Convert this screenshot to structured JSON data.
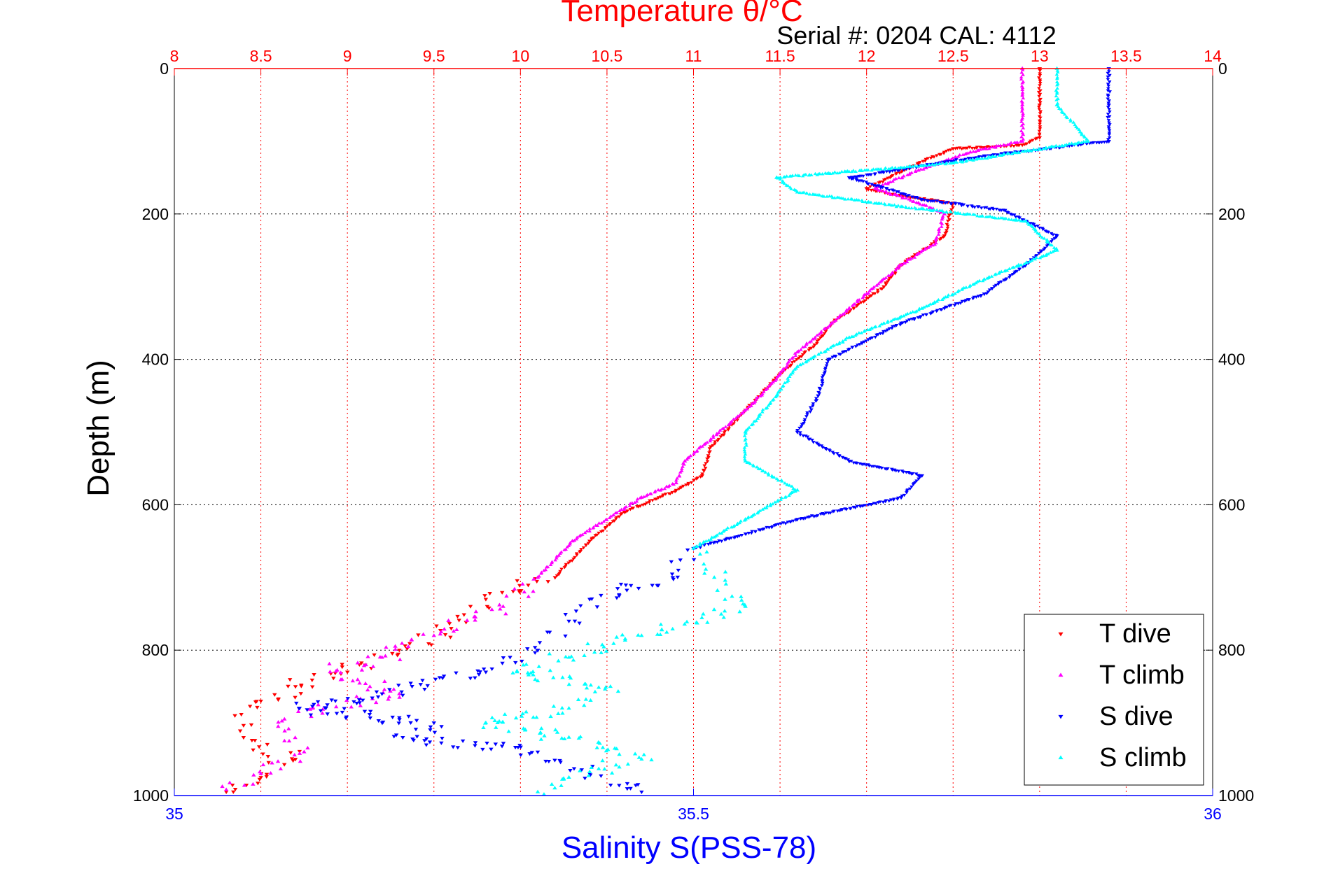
{
  "chart_data": {
    "type": "scatter",
    "serial_label": "Serial #: 0204  CAL: 4112",
    "title": "Temperature θ/°C",
    "ylabel": "Depth (m)",
    "xlabel": "Salinity S(PSS-78)",
    "ylim": [
      0,
      1000
    ],
    "y_reversed": true,
    "temp_axis": {
      "range": [
        8,
        14
      ],
      "ticks": [
        "8",
        "8.5",
        "9",
        "9.5",
        "10",
        "10.5",
        "11",
        "11.5",
        "12",
        "12.5",
        "13",
        "13.5",
        "14"
      ],
      "color": "#ff0000"
    },
    "sal_axis": {
      "range": [
        35,
        36
      ],
      "ticks": [
        "35",
        "35.5",
        "36"
      ],
      "color": "#0000ff"
    },
    "depth_ticks": [
      "0",
      "200",
      "400",
      "600",
      "800",
      "1000"
    ],
    "grid": true,
    "legend_position": "bottom-right",
    "series": [
      {
        "name": "T dive",
        "axis": "temp",
        "color": "#ff0000",
        "marker": "triangle-down",
        "points": [
          [
            13.0,
            0
          ],
          [
            13.0,
            50
          ],
          [
            13.0,
            95
          ],
          [
            12.9,
            105
          ],
          [
            12.5,
            110
          ],
          [
            12.3,
            130
          ],
          [
            12.0,
            165
          ],
          [
            12.2,
            175
          ],
          [
            12.5,
            185
          ],
          [
            12.45,
            230
          ],
          [
            12.2,
            270
          ],
          [
            12.1,
            300
          ],
          [
            11.8,
            350
          ],
          [
            11.7,
            380
          ],
          [
            11.5,
            420
          ],
          [
            11.3,
            470
          ],
          [
            11.1,
            520
          ],
          [
            11.05,
            560
          ],
          [
            10.9,
            580
          ],
          [
            10.6,
            610
          ],
          [
            10.4,
            650
          ],
          [
            10.2,
            700
          ],
          [
            9.8,
            730
          ],
          [
            9.6,
            770
          ],
          [
            9.3,
            800
          ],
          [
            9.0,
            830
          ],
          [
            8.7,
            850
          ],
          [
            8.5,
            870
          ],
          [
            8.35,
            890
          ],
          [
            8.4,
            920
          ],
          [
            8.7,
            950
          ],
          [
            8.5,
            975
          ],
          [
            8.3,
            995
          ]
        ]
      },
      {
        "name": "T climb",
        "axis": "temp",
        "color": "#ff00ff",
        "marker": "triangle-up",
        "points": [
          [
            12.9,
            0
          ],
          [
            12.9,
            50
          ],
          [
            12.9,
            100
          ],
          [
            12.6,
            115
          ],
          [
            12.3,
            140
          ],
          [
            12.05,
            165
          ],
          [
            12.3,
            185
          ],
          [
            12.45,
            200
          ],
          [
            12.4,
            240
          ],
          [
            12.2,
            270
          ],
          [
            12.0,
            310
          ],
          [
            11.8,
            350
          ],
          [
            11.6,
            390
          ],
          [
            11.5,
            420
          ],
          [
            11.35,
            460
          ],
          [
            11.1,
            510
          ],
          [
            10.95,
            540
          ],
          [
            10.9,
            570
          ],
          [
            10.7,
            590
          ],
          [
            10.3,
            650
          ],
          [
            10.1,
            700
          ],
          [
            9.9,
            740
          ],
          [
            9.5,
            780
          ],
          [
            9.2,
            810
          ],
          [
            8.9,
            830
          ],
          [
            9.3,
            860
          ],
          [
            8.8,
            880
          ],
          [
            8.6,
            905
          ],
          [
            8.75,
            940
          ],
          [
            8.5,
            970
          ],
          [
            8.3,
            992
          ]
        ]
      },
      {
        "name": "S dive",
        "axis": "sal",
        "color": "#0000ff",
        "marker": "triangle-down",
        "points": [
          [
            35.9,
            0
          ],
          [
            35.9,
            50
          ],
          [
            35.9,
            100
          ],
          [
            35.78,
            120
          ],
          [
            35.65,
            150
          ],
          [
            35.72,
            180
          ],
          [
            35.8,
            195
          ],
          [
            35.85,
            230
          ],
          [
            35.82,
            270
          ],
          [
            35.78,
            310
          ],
          [
            35.7,
            350
          ],
          [
            35.63,
            400
          ],
          [
            35.62,
            450
          ],
          [
            35.6,
            500
          ],
          [
            35.65,
            540
          ],
          [
            35.72,
            560
          ],
          [
            35.7,
            590
          ],
          [
            35.6,
            620
          ],
          [
            35.5,
            660
          ],
          [
            35.48,
            700
          ],
          [
            35.4,
            730
          ],
          [
            35.38,
            760
          ],
          [
            35.35,
            800
          ],
          [
            35.3,
            830
          ],
          [
            35.2,
            860
          ],
          [
            35.12,
            880
          ],
          [
            35.25,
            900
          ],
          [
            35.22,
            920
          ],
          [
            35.35,
            940
          ],
          [
            35.4,
            970
          ],
          [
            35.45,
            995
          ]
        ]
      },
      {
        "name": "S climb",
        "axis": "sal",
        "color": "#00ffff",
        "marker": "triangle-up",
        "points": [
          [
            35.85,
            0
          ],
          [
            35.85,
            50
          ],
          [
            35.88,
            100
          ],
          [
            35.75,
            130
          ],
          [
            35.58,
            150
          ],
          [
            35.6,
            170
          ],
          [
            35.7,
            190
          ],
          [
            35.82,
            210
          ],
          [
            35.85,
            250
          ],
          [
            35.78,
            290
          ],
          [
            35.72,
            330
          ],
          [
            35.65,
            370
          ],
          [
            35.6,
            410
          ],
          [
            35.58,
            450
          ],
          [
            35.55,
            500
          ],
          [
            35.55,
            540
          ],
          [
            35.6,
            580
          ],
          [
            35.55,
            620
          ],
          [
            35.5,
            660
          ],
          [
            35.52,
            700
          ],
          [
            35.55,
            740
          ],
          [
            35.45,
            780
          ],
          [
            35.38,
            810
          ],
          [
            35.33,
            830
          ],
          [
            35.42,
            850
          ],
          [
            35.38,
            880
          ],
          [
            35.3,
            900
          ],
          [
            35.38,
            920
          ],
          [
            35.45,
            950
          ],
          [
            35.38,
            975
          ],
          [
            35.35,
            995
          ]
        ]
      }
    ]
  }
}
